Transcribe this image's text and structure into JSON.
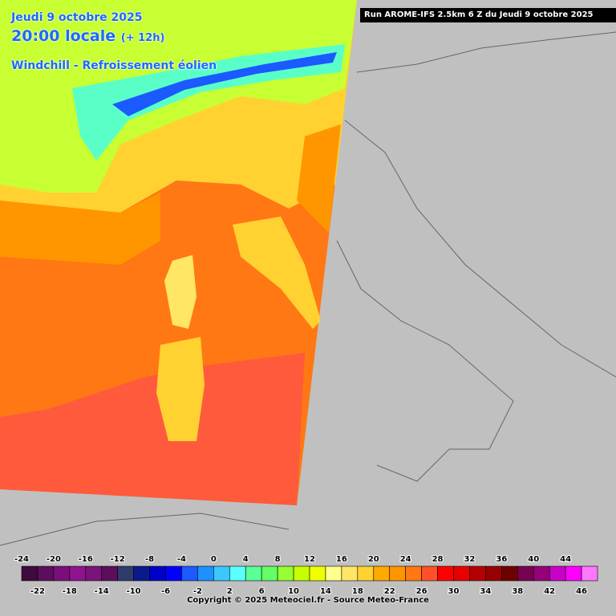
{
  "header": {
    "date": "Jeudi 9 octobre 2025",
    "time": "20:00 locale",
    "lead": "(+ 12h)",
    "parameter": "Windchill - Refroissement éolien",
    "run": "Run AROME-IFS 2.5km 6 Z du Jeudi 9 octobre 2025"
  },
  "legend": {
    "labels": [
      -24,
      -22,
      -20,
      -18,
      -16,
      -14,
      -12,
      -10,
      -8,
      -6,
      -4,
      -2,
      0,
      2,
      4,
      6,
      8,
      10,
      12,
      14,
      16,
      18,
      20,
      22,
      24,
      26,
      28,
      30,
      32,
      34,
      36,
      38,
      40,
      42,
      44,
      46
    ],
    "colors": [
      "#3d0b3d",
      "#5c0e5c",
      "#7b0e7b",
      "#8e148e",
      "#7a147a",
      "#5c0e5c",
      "#2f3a6e",
      "#0a1a8c",
      "#0000c8",
      "#0000ff",
      "#1a5aff",
      "#1e90ff",
      "#3cc8ff",
      "#5affff",
      "#5aff96",
      "#64ff64",
      "#96ff32",
      "#c8ff00",
      "#f0ff00",
      "#ffff8c",
      "#ffe664",
      "#ffd232",
      "#ffaa00",
      "#ff9600",
      "#ff7814",
      "#ff5028",
      "#ff0000",
      "#e60000",
      "#b40000",
      "#960000",
      "#6e0000",
      "#780050",
      "#960078",
      "#c800c8",
      "#ff00ff",
      "#ff78ff"
    ]
  },
  "footer": {
    "copyright": "Copyright © 2025 Meteociel.fr - Source Meteo-France"
  }
}
